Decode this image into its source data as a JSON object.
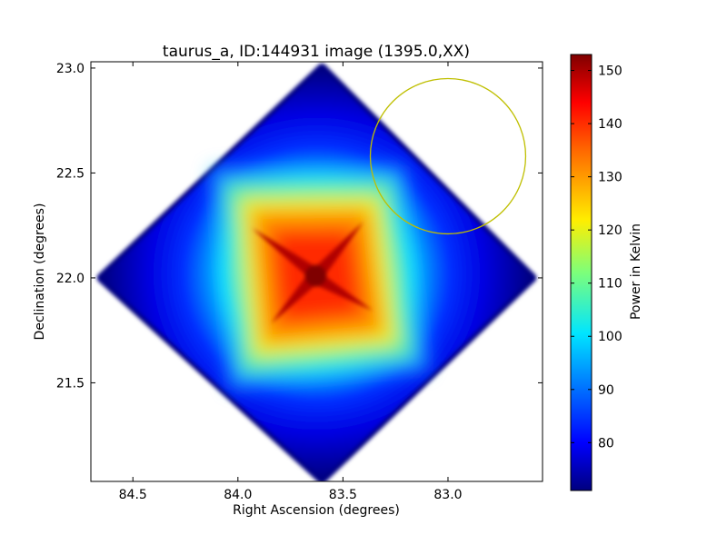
{
  "chart_data": {
    "type": "heatmap",
    "title": "taurus_a, ID:144931 image (1395.0,XX)",
    "xlabel": "Right Ascension (degrees)",
    "ylabel": "Declination (degrees)",
    "xlim": [
      84.7,
      82.55
    ],
    "ylim": [
      21.03,
      23.03
    ],
    "x_ticks": [
      84.5,
      84.0,
      83.5,
      83.0
    ],
    "x_tick_labels": [
      "84.5",
      "84.0",
      "83.5",
      "83.0"
    ],
    "y_ticks": [
      21.5,
      22.0,
      22.5,
      23.0
    ],
    "y_tick_labels": [
      "21.5",
      "22.0",
      "22.5",
      "23.0"
    ],
    "peak": {
      "ra": 83.63,
      "dec": 22.01,
      "value": 152
    },
    "footprint_corners": [
      {
        "ra": 83.6,
        "dec": 23.0
      },
      {
        "ra": 82.6,
        "dec": 22.0
      },
      {
        "ra": 83.6,
        "dec": 21.04
      },
      {
        "ra": 84.65,
        "dec": 22.0
      }
    ],
    "circle_marker": {
      "ra": 83.0,
      "dec": 22.58,
      "radius_deg": 0.37,
      "color": "#bfbf00"
    },
    "colorbar": {
      "label": "Power in Kelvin",
      "min": 71,
      "max": 153,
      "ticks": [
        80,
        90,
        100,
        110,
        120,
        130,
        140,
        150
      ],
      "tick_labels": [
        "80",
        "90",
        "100",
        "110",
        "120",
        "130",
        "140",
        "150"
      ],
      "colormap": "jet"
    }
  }
}
